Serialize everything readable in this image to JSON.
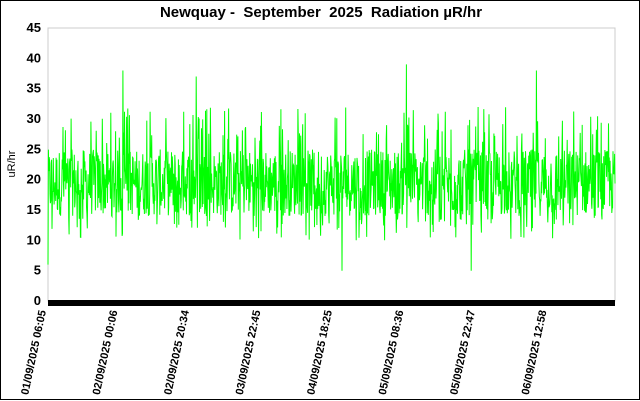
{
  "chart_data": {
    "type": "line",
    "title": "Newquay -  September  2025  Radiation µR/hr",
    "ylabel": "uR/hr",
    "xlabel": "",
    "ylim": [
      0,
      45
    ],
    "yticks": [
      0,
      5,
      10,
      15,
      20,
      25,
      30,
      35,
      40,
      45
    ],
    "grid": false,
    "legend": "none",
    "x_tick_labels": [
      "01/09/2025 06:05",
      "02/09/2025 00:06",
      "02/09/2025 20:34",
      "03/09/2025 22:45",
      "04/09/2025 18:25",
      "05/09/2025 08:36",
      "05/09/2025 22:47",
      "06/09/2025 12:58"
    ],
    "series": [
      {
        "color": "#00ff00",
        "summary": {
          "baseline_low": 14,
          "baseline_high": 25,
          "typical_min": 10,
          "typical_max": 32
        },
        "notable_points": [
          {
            "x": "02/09/2025 00:06",
            "y": 38
          },
          {
            "x": "02/09/2025 20:34",
            "y": 37
          },
          {
            "x": "05/09/2025 08:36",
            "y": 39
          },
          {
            "x": "06/09/2025 12:58",
            "y": 38
          },
          {
            "x": "01/09/2025 06:05",
            "y": 6
          },
          {
            "x": "04/09/2025 18:25",
            "y": 5
          },
          {
            "x": "05/09/2025 22:47",
            "y": 5
          }
        ]
      }
    ],
    "axis_bar_color": "#000000"
  }
}
